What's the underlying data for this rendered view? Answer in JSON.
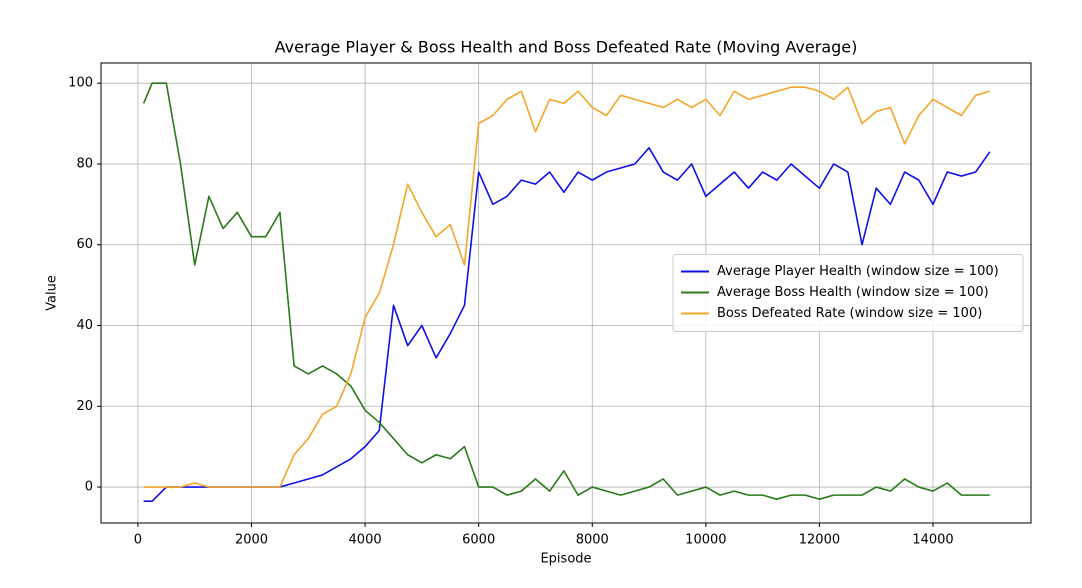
{
  "chart_data": {
    "type": "line",
    "title": "Average Player & Boss Health and Boss Defeated Rate (Moving Average)",
    "x_label": "Episode",
    "y_label": "Value",
    "x": [
      100,
      250,
      500,
      750,
      1000,
      1250,
      1500,
      1750,
      2000,
      2250,
      2500,
      2750,
      3000,
      3250,
      3500,
      3750,
      4000,
      4250,
      4500,
      4750,
      5000,
      5250,
      5500,
      5750,
      6000,
      6250,
      6500,
      6750,
      7000,
      7250,
      7500,
      7750,
      8000,
      8250,
      8500,
      8750,
      9000,
      9250,
      9500,
      9750,
      10000,
      10250,
      10500,
      10750,
      11000,
      11250,
      11500,
      11750,
      12000,
      12250,
      12500,
      12750,
      13000,
      13250,
      13500,
      13750,
      14000,
      14250,
      14500,
      14750,
      15000
    ],
    "series": [
      {
        "name": "Average Player Health (window size = 100)",
        "color": "#1010e8",
        "values": [
          -3.5,
          -3.5,
          0,
          0,
          0,
          0,
          0,
          0,
          0,
          0,
          0,
          1,
          2,
          3,
          5,
          7,
          10,
          14,
          45,
          35,
          40,
          32,
          38,
          45,
          78,
          70,
          72,
          76,
          75,
          78,
          73,
          78,
          76,
          78,
          79,
          80,
          84,
          78,
          76,
          80,
          72,
          75,
          78,
          74,
          78,
          76,
          80,
          77,
          74,
          80,
          78,
          60,
          74,
          70,
          78,
          76,
          70,
          78,
          77,
          78,
          83
        ]
      },
      {
        "name": "Average Boss Health (window size = 100)",
        "color": "#2a7a1a",
        "values": [
          95,
          100,
          100,
          80,
          55,
          72,
          64,
          68,
          62,
          62,
          68,
          30,
          28,
          30,
          28,
          25,
          19,
          16,
          12,
          8,
          6,
          8,
          7,
          10,
          0,
          0,
          -2,
          -1,
          2,
          -1,
          4,
          -2,
          0,
          -1,
          -2,
          -1,
          0,
          2,
          -2,
          -1,
          0,
          -2,
          -1,
          -2,
          -2,
          -3,
          -2,
          -2,
          -3,
          -2,
          -2,
          -2,
          0,
          -1,
          2,
          0,
          -1,
          1,
          -2,
          -2,
          -2
        ]
      },
      {
        "name": "Boss Defeated Rate (window size = 100)",
        "color": "#f4a52a",
        "values": [
          0,
          0,
          0,
          0,
          1,
          0,
          0,
          0,
          0,
          0,
          0,
          8,
          12,
          18,
          20,
          28,
          42,
          48,
          60,
          75,
          68,
          62,
          65,
          55,
          90,
          92,
          96,
          98,
          88,
          96,
          95,
          98,
          94,
          92,
          97,
          96,
          95,
          94,
          96,
          94,
          96,
          92,
          98,
          96,
          97,
          98,
          99,
          99,
          98,
          96,
          99,
          90,
          93,
          94,
          85,
          92,
          96,
          94,
          92,
          97,
          98
        ]
      }
    ],
    "xlim": [
      -650,
      15725
    ],
    "ylim": [
      -8.9,
      105
    ],
    "xticks": [
      0,
      2000,
      4000,
      6000,
      8000,
      10000,
      12000,
      14000
    ],
    "yticks": [
      0,
      20,
      40,
      60,
      80,
      100
    ],
    "grid": true,
    "legend": "center right"
  }
}
